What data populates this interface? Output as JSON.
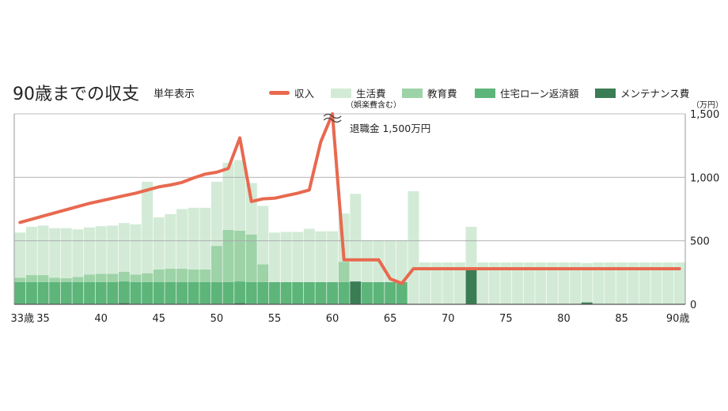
{
  "chart_data": {
    "type": "bar",
    "title": "90歳までの収支",
    "subtitle": "単年表示",
    "unit_label": "（万円）",
    "annotation": "退職金 1,500万円",
    "legend": [
      {
        "key": "income",
        "label": "収入",
        "color": "#e8694f",
        "kind": "line"
      },
      {
        "key": "living",
        "label": "生活費",
        "note": "（娯楽費含む）",
        "color": "#d3ebd6",
        "kind": "bar"
      },
      {
        "key": "education",
        "label": "教育費",
        "color": "#9dd3a7",
        "kind": "bar"
      },
      {
        "key": "housing",
        "label": "住宅ローン返済額",
        "color": "#5db57a",
        "kind": "bar"
      },
      {
        "key": "maintenance",
        "label": "メンテナンス費",
        "color": "#3a7d55",
        "kind": "bar"
      }
    ],
    "ylim": [
      0,
      1500
    ],
    "yticks": [
      {
        "value": 0,
        "label": "0"
      },
      {
        "value": 500,
        "label": "500"
      },
      {
        "value": 1000,
        "label": "1,000"
      },
      {
        "value": 1500,
        "label": "1,500"
      }
    ],
    "xlim": [
      33,
      90
    ],
    "xticks": [
      {
        "value": 33,
        "label": "33歳"
      },
      {
        "value": 35,
        "label": "35"
      },
      {
        "value": 40,
        "label": "40"
      },
      {
        "value": 45,
        "label": "45"
      },
      {
        "value": 50,
        "label": "50"
      },
      {
        "value": 55,
        "label": "55"
      },
      {
        "value": 60,
        "label": "60"
      },
      {
        "value": 65,
        "label": "65"
      },
      {
        "value": 70,
        "label": "70"
      },
      {
        "value": 75,
        "label": "75"
      },
      {
        "value": 80,
        "label": "80"
      },
      {
        "value": 85,
        "label": "85"
      },
      {
        "value": 90,
        "label": "90歳"
      }
    ],
    "ages": [
      33,
      34,
      35,
      36,
      37,
      38,
      39,
      40,
      41,
      42,
      43,
      44,
      45,
      46,
      47,
      48,
      49,
      50,
      51,
      52,
      53,
      54,
      55,
      56,
      57,
      58,
      59,
      60,
      61,
      62,
      63,
      64,
      65,
      66,
      67,
      68,
      69,
      70,
      71,
      72,
      73,
      74,
      75,
      76,
      77,
      78,
      79,
      80,
      81,
      82,
      83,
      84,
      85,
      86,
      87,
      88,
      89,
      90
    ],
    "series": [
      {
        "key": "maintenance",
        "values": [
          0,
          0,
          0,
          0,
          0,
          0,
          0,
          0,
          0,
          10,
          0,
          0,
          0,
          0,
          0,
          0,
          0,
          0,
          0,
          10,
          0,
          0,
          0,
          0,
          0,
          0,
          0,
          0,
          0,
          180,
          0,
          0,
          0,
          0,
          0,
          0,
          0,
          0,
          0,
          270,
          0,
          0,
          0,
          0,
          0,
          0,
          0,
          0,
          0,
          15,
          0,
          0,
          0,
          0,
          0,
          0,
          0,
          0
        ]
      },
      {
        "key": "housing",
        "values": [
          175,
          175,
          175,
          175,
          175,
          175,
          175,
          175,
          175,
          170,
          175,
          175,
          175,
          175,
          175,
          175,
          175,
          175,
          175,
          170,
          175,
          175,
          175,
          175,
          175,
          175,
          175,
          175,
          175,
          0,
          175,
          175,
          175,
          175,
          0,
          0,
          0,
          0,
          0,
          0,
          0,
          0,
          0,
          0,
          0,
          0,
          0,
          0,
          0,
          0,
          0,
          0,
          0,
          0,
          0,
          0,
          0,
          0
        ]
      },
      {
        "key": "education",
        "values": [
          35,
          55,
          55,
          35,
          30,
          40,
          60,
          65,
          65,
          75,
          60,
          70,
          100,
          105,
          105,
          100,
          100,
          285,
          410,
          400,
          375,
          140,
          0,
          0,
          0,
          0,
          0,
          0,
          160,
          0,
          0,
          0,
          0,
          0,
          0,
          0,
          0,
          0,
          0,
          0,
          0,
          0,
          0,
          0,
          0,
          0,
          0,
          0,
          0,
          0,
          0,
          0,
          0,
          0,
          0,
          0,
          0,
          0
        ]
      },
      {
        "key": "living",
        "values": [
          355,
          380,
          390,
          390,
          395,
          375,
          370,
          375,
          380,
          385,
          395,
          720,
          410,
          430,
          470,
          485,
          485,
          505,
          530,
          555,
          405,
          460,
          390,
          395,
          395,
          420,
          400,
          400,
          380,
          690,
          330,
          330,
          330,
          330,
          890,
          330,
          330,
          330,
          330,
          340,
          330,
          330,
          330,
          330,
          330,
          330,
          330,
          330,
          330,
          310,
          330,
          330,
          330,
          330,
          330,
          330,
          330,
          330
        ]
      },
      {
        "key": "income",
        "type": "line",
        "values": [
          645,
          670,
          695,
          720,
          745,
          770,
          795,
          815,
          835,
          855,
          875,
          900,
          925,
          940,
          960,
          995,
          1025,
          1040,
          1070,
          1310,
          810,
          830,
          835,
          855,
          875,
          900,
          1280,
          1500,
          350,
          350,
          350,
          350,
          200,
          165,
          280,
          280,
          280,
          280,
          280,
          280,
          280,
          280,
          280,
          280,
          280,
          280,
          280,
          280,
          280,
          280,
          280,
          280,
          280,
          280,
          280,
          280,
          280,
          280
        ]
      }
    ]
  }
}
